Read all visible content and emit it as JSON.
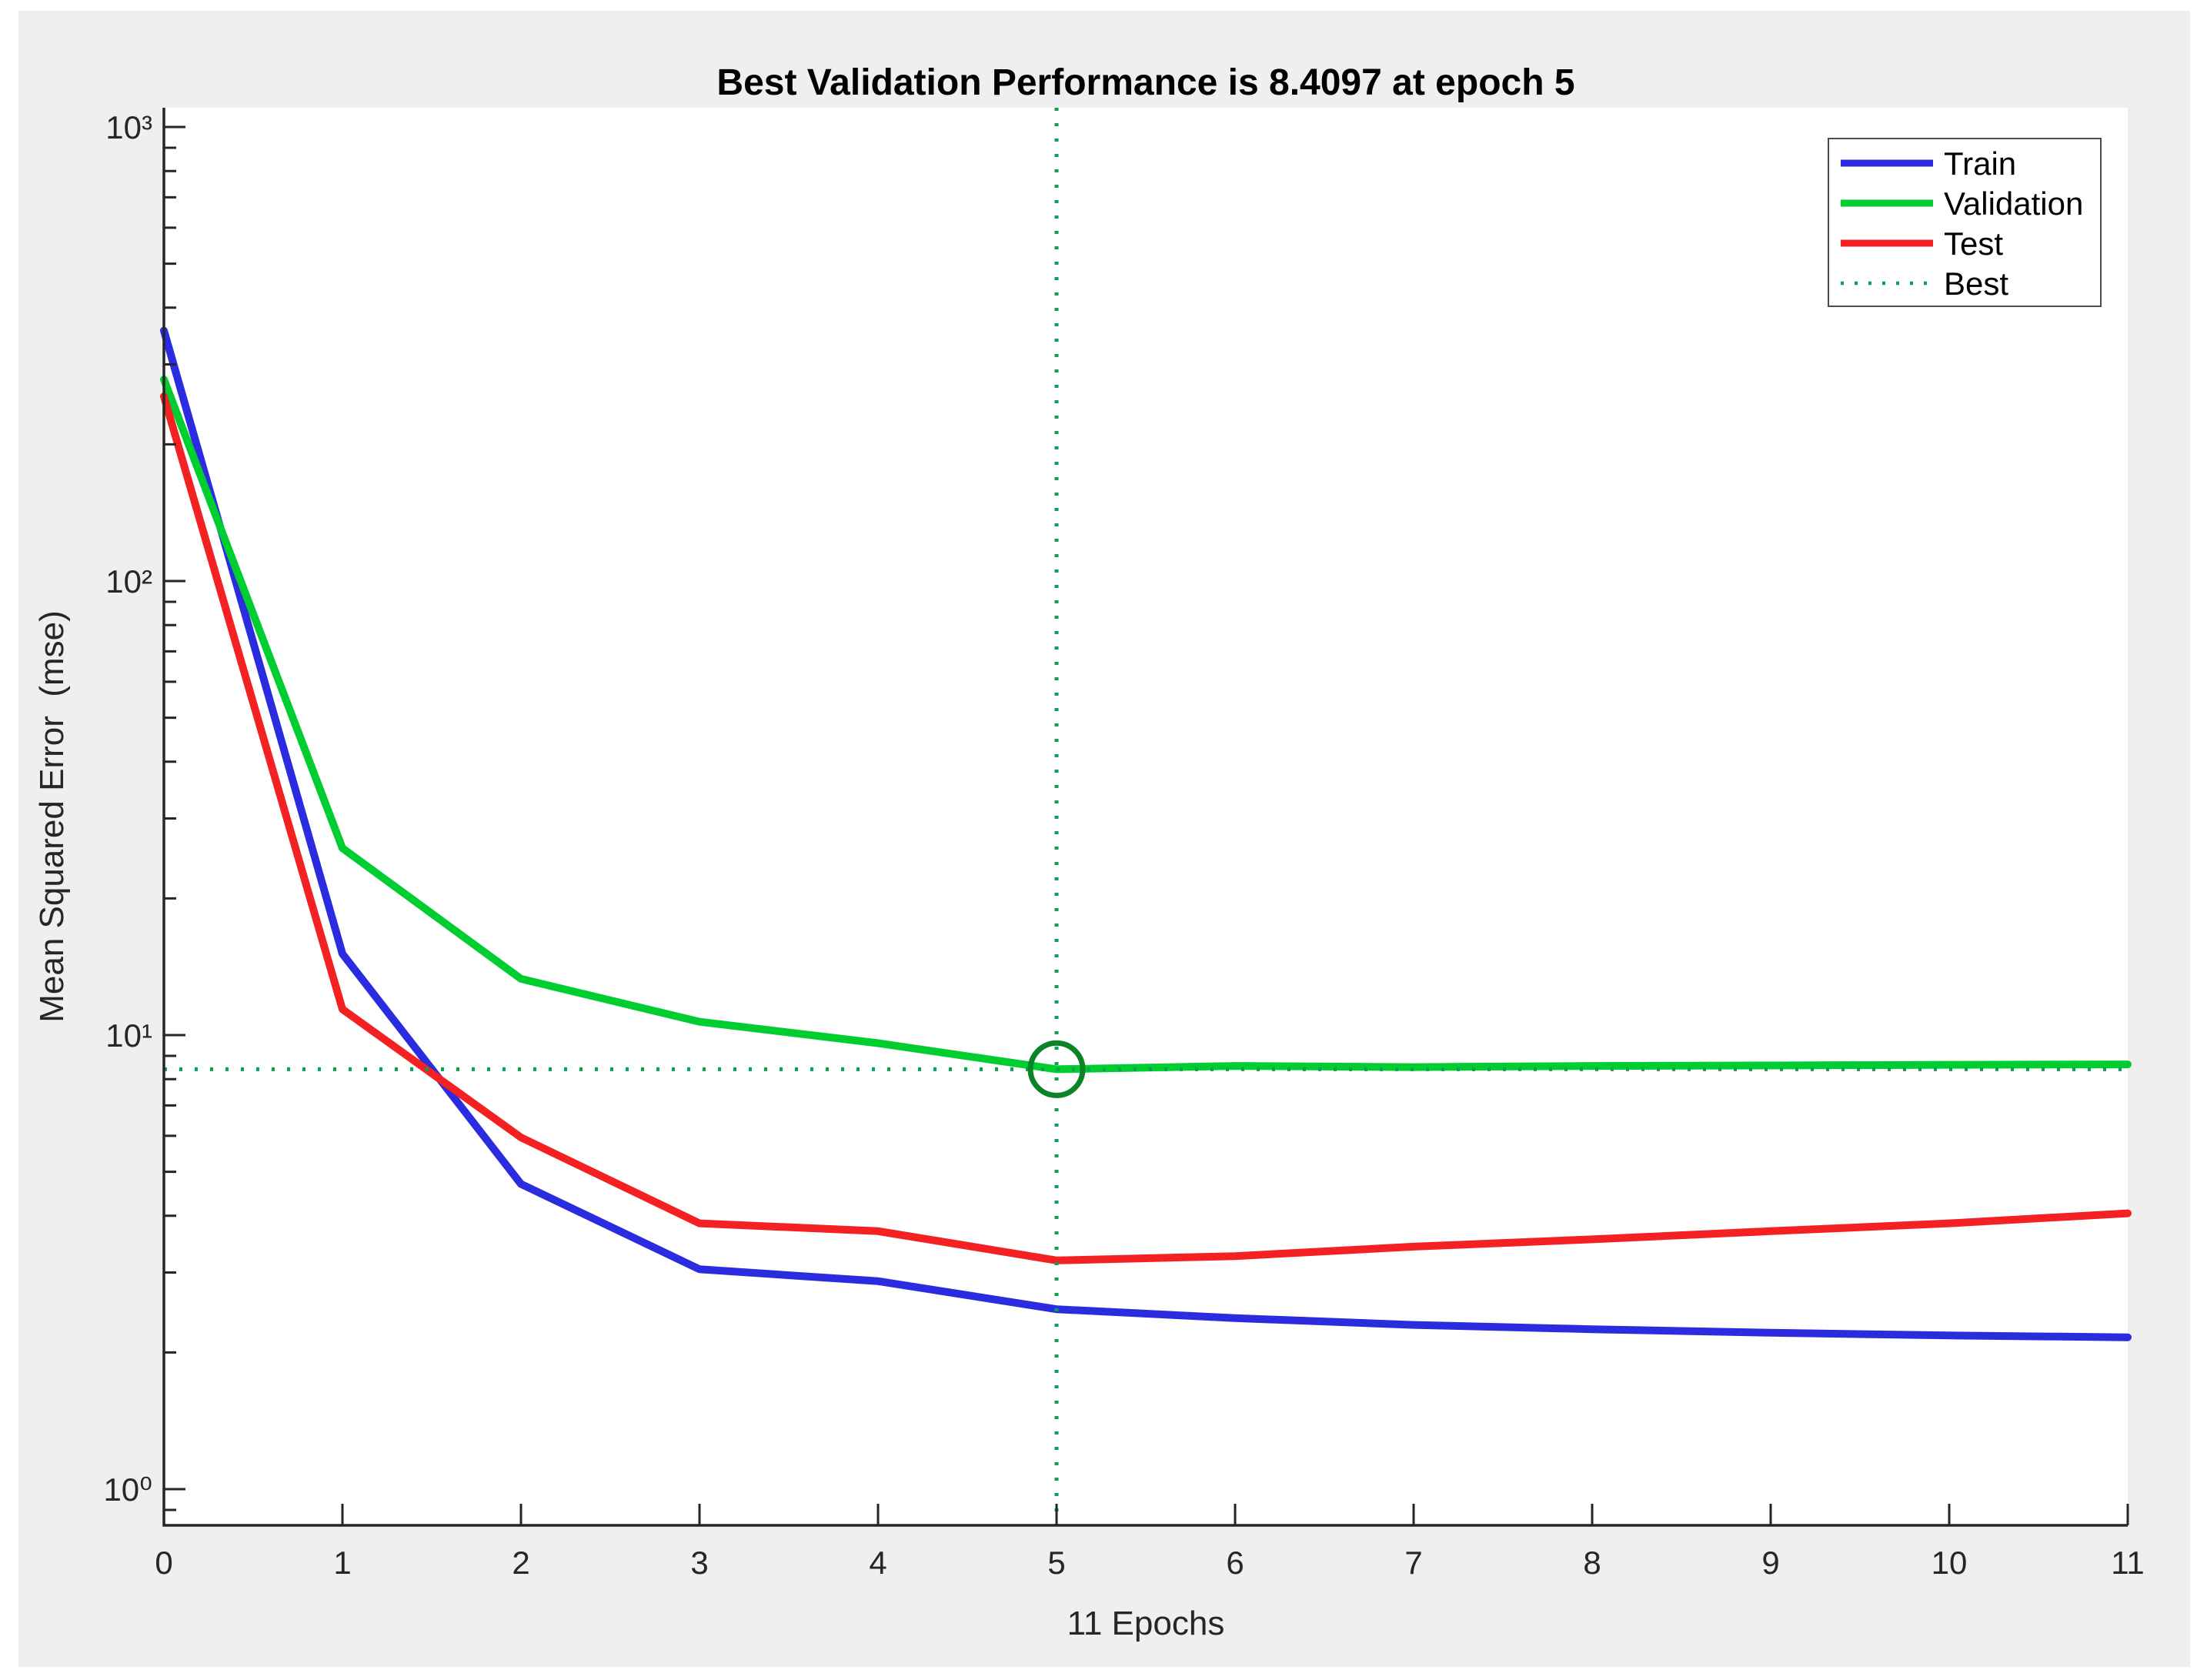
{
  "figure": {
    "title": "Best Validation Performance is 8.4097 at epoch 5",
    "xlabel": "11 Epochs",
    "ylabel": "Mean Squared Error  (mse)"
  },
  "legend": [
    "Train",
    "Validation",
    "Test",
    "Best"
  ],
  "colors": {
    "train": "#2B2BE0",
    "validation": "#00CE30",
    "test": "#F32121",
    "best_line": "#0AA24E",
    "best_circle": "#0B8427",
    "axis": "#262626",
    "figure_bg": "#EFEFEF",
    "plot_bg": "#FFFFFF",
    "legend_border": "#4D4D4D"
  },
  "chart_data": {
    "type": "line",
    "yscale": "log",
    "title": "Best Validation Performance is 8.4097 at epoch 5",
    "xlabel": "11 Epochs",
    "ylabel": "Mean Squared Error  (mse)",
    "xlim": [
      0,
      11
    ],
    "ylim": [
      0.83,
      1000
    ],
    "grid": false,
    "legend_position": "northeast",
    "x": [
      0,
      1,
      2,
      3,
      4,
      5,
      6,
      7,
      8,
      9,
      10,
      11
    ],
    "xtick_labels": [
      "0",
      "1",
      "2",
      "3",
      "4",
      "5",
      "6",
      "7",
      "8",
      "9",
      "10",
      "11"
    ],
    "ytick_values": [
      1,
      10,
      100,
      1000
    ],
    "ytick_labels": [
      "10⁰",
      "10¹",
      "10²",
      "10³"
    ],
    "series": [
      {
        "name": "Train",
        "color_key": "train",
        "values": [
          356,
          15.1,
          4.7,
          3.05,
          2.87,
          2.49,
          2.38,
          2.3,
          2.25,
          2.21,
          2.18,
          2.16
        ]
      },
      {
        "name": "Validation",
        "color_key": "validation",
        "values": [
          278,
          25.8,
          13.3,
          10.7,
          9.6,
          8.41,
          8.55,
          8.5,
          8.55,
          8.57,
          8.6,
          8.62
        ]
      },
      {
        "name": "Test",
        "color_key": "test",
        "values": [
          255,
          11.4,
          5.95,
          3.85,
          3.7,
          3.19,
          3.26,
          3.42,
          3.55,
          3.7,
          3.85,
          4.05
        ]
      }
    ],
    "best": {
      "epoch": 5,
      "value": 8.4097,
      "label": "Best"
    }
  }
}
